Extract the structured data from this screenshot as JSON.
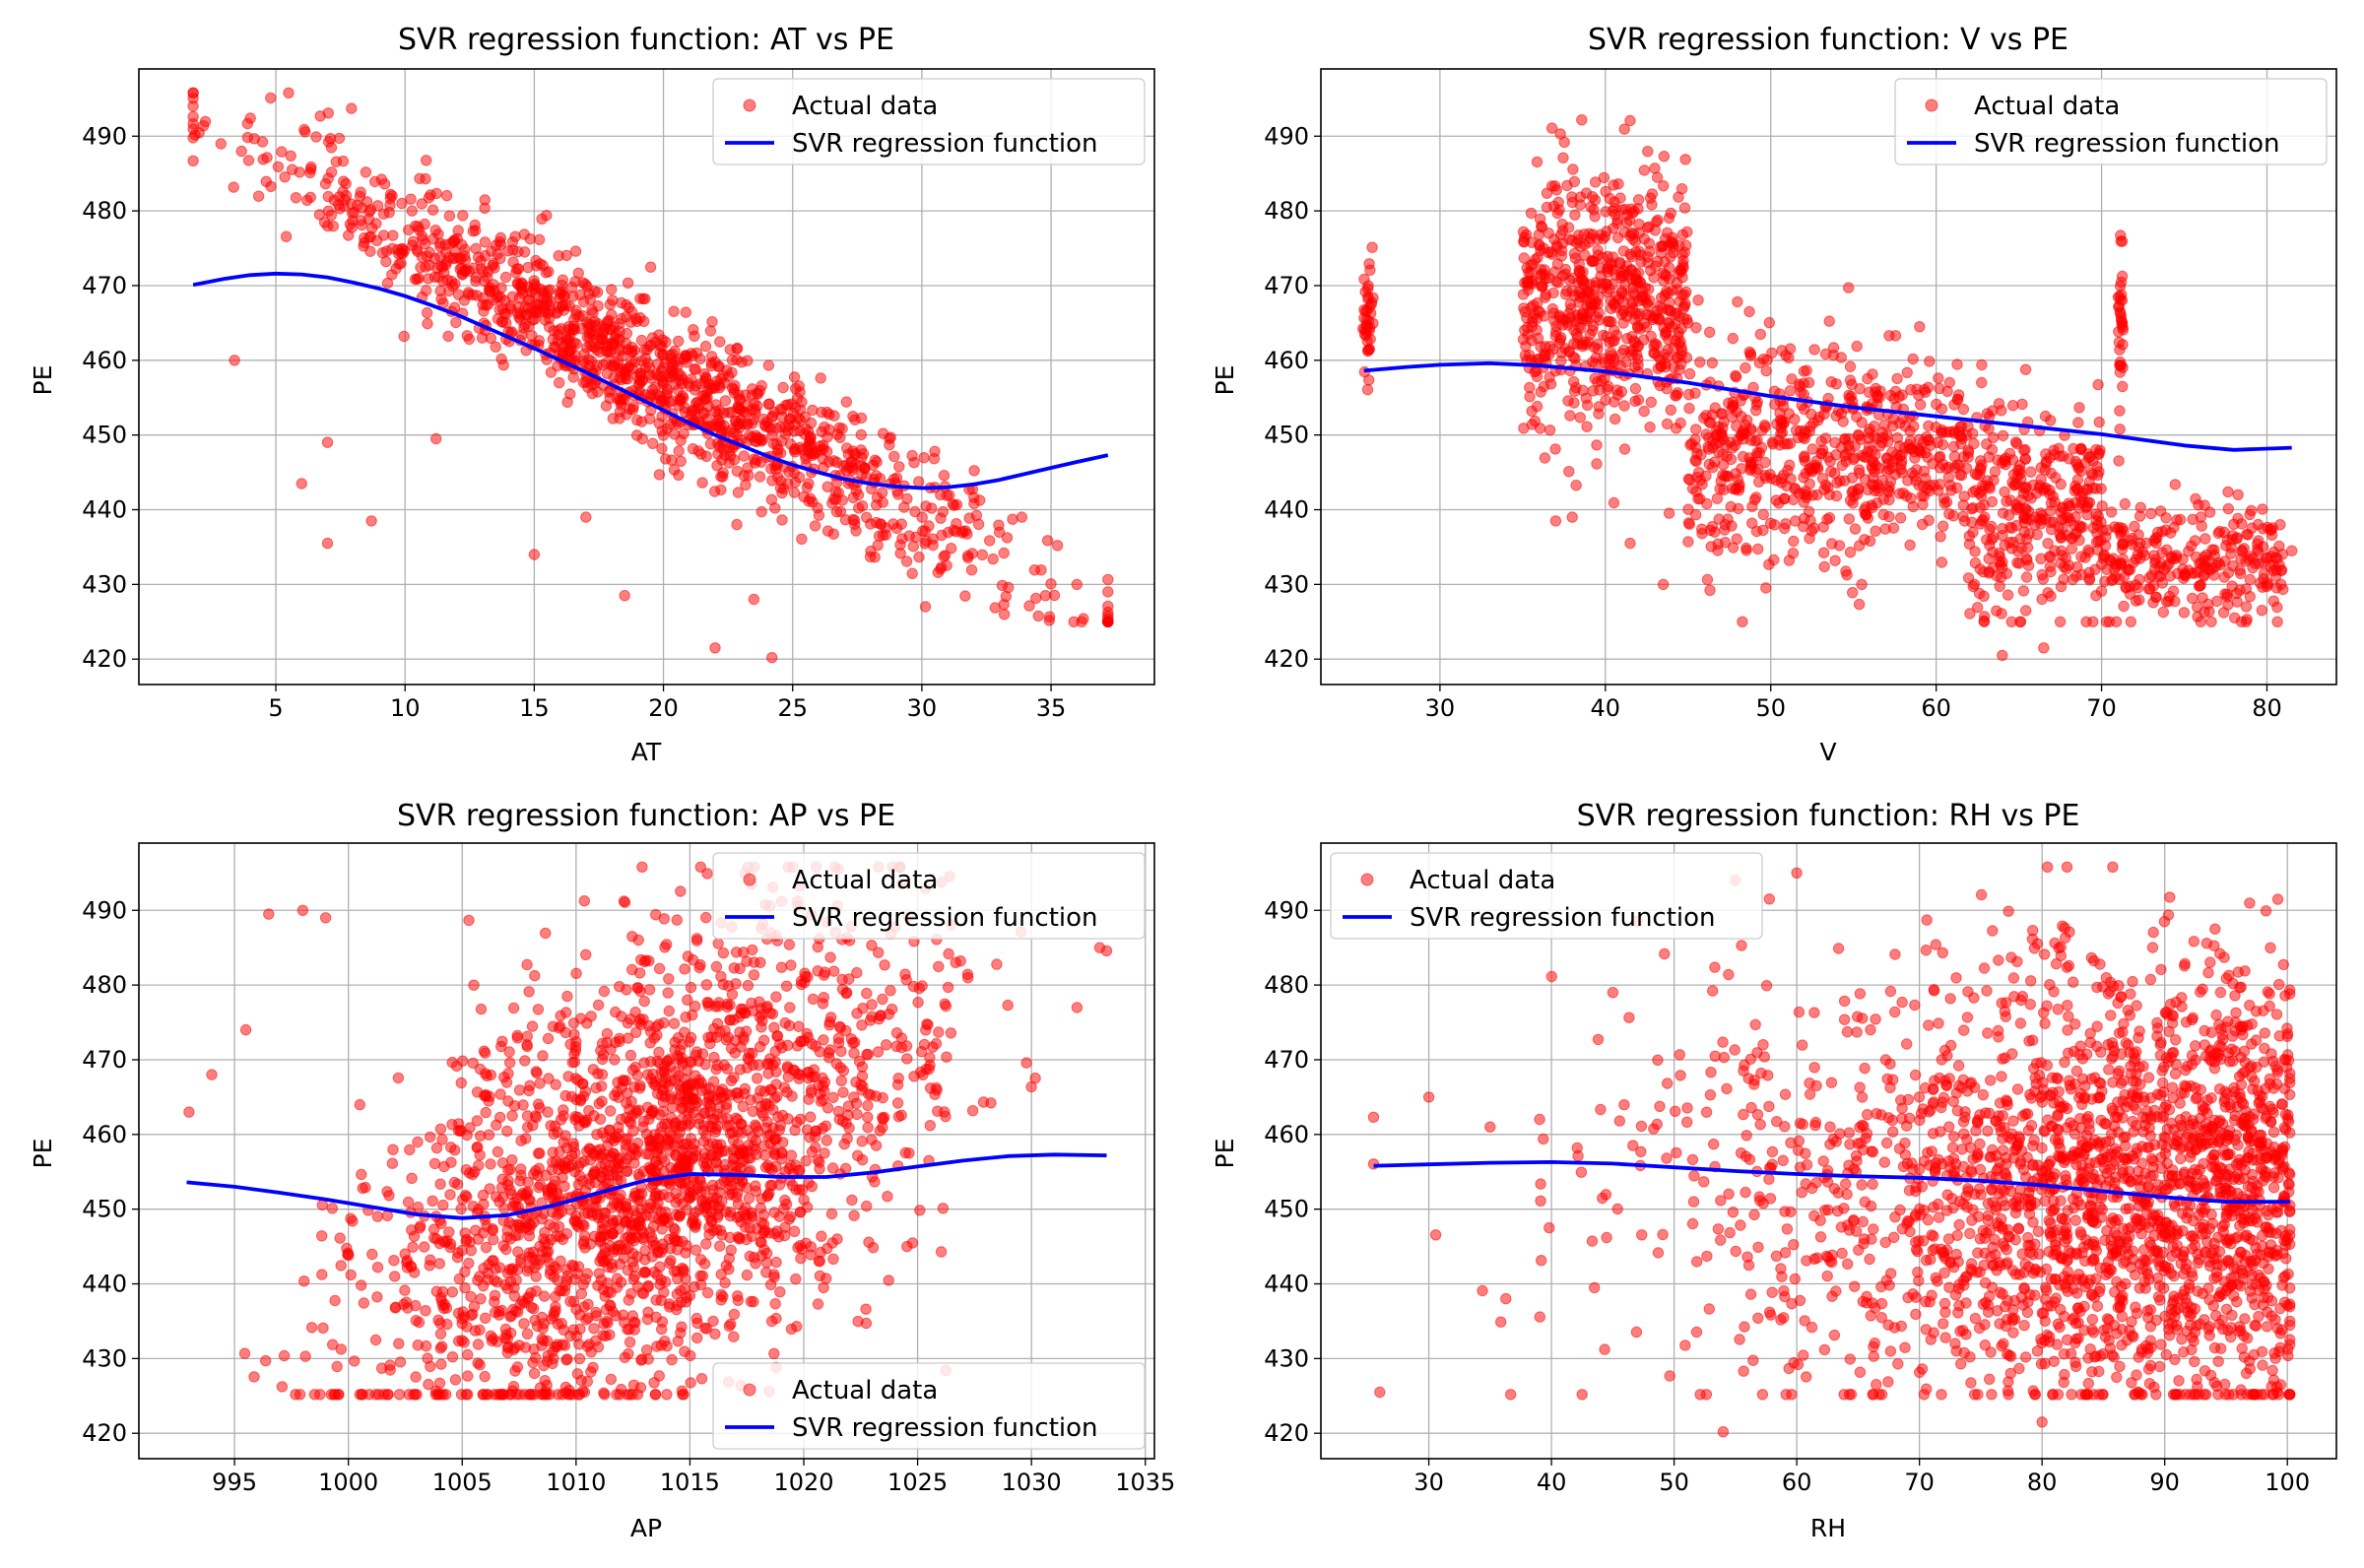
{
  "figure": {
    "background": "#ffffff"
  },
  "colors": {
    "scatter": "#ff0000",
    "line": "#0000ff",
    "grid": "#b0b0b0"
  },
  "chart_data": [
    {
      "type": "scatter",
      "title": "SVR regression function: AT vs PE",
      "xlabel": "AT",
      "ylabel": "PE",
      "xlim": [
        -0.3,
        39.0
      ],
      "ylim": [
        416.6,
        499.0
      ],
      "xticks": [
        5,
        10,
        15,
        20,
        25,
        30,
        35
      ],
      "yticks": [
        420,
        430,
        440,
        450,
        460,
        470,
        480,
        490
      ],
      "grid": true,
      "legend_loc": "upper-right",
      "gen": {
        "kind": "linear",
        "x0": 1.8,
        "x1": 37.2,
        "xmu": 19.5,
        "xsd": 7.3,
        "y0": 492,
        "slope": -1.93,
        "ysd": 4.5,
        "ymin": 425,
        "ymax": 495.8,
        "n": 1300,
        "outliers": [
          [
            3.4,
            460
          ],
          [
            6,
            443.5
          ],
          [
            7,
            449
          ],
          [
            7,
            435.5
          ],
          [
            8.7,
            438.5
          ],
          [
            11.2,
            449.5
          ],
          [
            15,
            434
          ],
          [
            17,
            439
          ],
          [
            18.5,
            428.5
          ],
          [
            22,
            421.5
          ],
          [
            24.2,
            420.2
          ],
          [
            23.5,
            428
          ],
          [
            30.5,
            447.8
          ],
          [
            30.5,
            443
          ],
          [
            33,
            437
          ],
          [
            36,
            430
          ],
          [
            37.2,
            429
          ]
        ]
      },
      "series": [
        {
          "name": "Actual data",
          "kind": "scatter"
        },
        {
          "name": "SVR regression function",
          "kind": "line",
          "x": [
            1.8,
            3,
            4,
            5,
            6,
            7,
            8,
            9,
            10,
            11,
            12,
            13,
            14,
            15,
            16,
            17,
            18,
            19,
            20,
            21,
            22,
            23,
            24,
            25,
            26,
            27,
            28,
            29,
            30,
            31,
            32,
            33,
            34,
            35,
            36,
            37.2
          ],
          "y": [
            470.1,
            470.9,
            471.4,
            471.6,
            471.5,
            471.1,
            470.4,
            469.6,
            468.6,
            467.4,
            466.1,
            464.6,
            463.1,
            461.6,
            460.0,
            458.4,
            456.7,
            455.0,
            453.3,
            451.6,
            450.0,
            448.6,
            447.2,
            446.0,
            445.0,
            444.1,
            443.5,
            443.1,
            442.9,
            443.0,
            443.4,
            444.0,
            444.8,
            445.6,
            446.4,
            447.3
          ]
        }
      ]
    },
    {
      "type": "scatter",
      "title": "SVR regression function: V vs PE",
      "xlabel": "V",
      "ylabel": "PE",
      "xlim": [
        22.8,
        84.2
      ],
      "ylim": [
        416.6,
        499.0
      ],
      "xticks": [
        30,
        40,
        50,
        60,
        70,
        80
      ],
      "yticks": [
        420,
        430,
        440,
        450,
        460,
        470,
        480,
        490
      ],
      "grid": true,
      "legend_loc": "upper-right",
      "gen": {
        "kind": "clusters",
        "ymin": 425,
        "ymax": 495.8,
        "clusters": [
          [
            35,
            45,
            468,
            9,
            650
          ],
          [
            45,
            55,
            448,
            8,
            380
          ],
          [
            55,
            62,
            447,
            6,
            260
          ],
          [
            62,
            70,
            440,
            7,
            340
          ],
          [
            70,
            81,
            433,
            4,
            280
          ],
          [
            25.3,
            26,
            465,
            4,
            40
          ],
          [
            71,
            71.3,
            465,
            7,
            35
          ]
        ],
        "outliers": [
          [
            37,
            438.5
          ],
          [
            38,
            439
          ],
          [
            41.5,
            435.5
          ],
          [
            43.5,
            430
          ],
          [
            55.5,
            430
          ],
          [
            64,
            420.5
          ],
          [
            66.5,
            421.5
          ],
          [
            81.5,
            434.5
          ],
          [
            48,
            449.3
          ],
          [
            52,
            441
          ]
        ]
      },
      "series": [
        {
          "name": "Actual data",
          "kind": "scatter"
        },
        {
          "name": "SVR regression function",
          "kind": "line",
          "x": [
            25.4,
            28,
            30,
            33,
            36,
            40,
            45,
            50,
            55,
            60,
            65,
            70,
            75,
            78,
            81.5
          ],
          "y": [
            458.6,
            459.1,
            459.4,
            459.6,
            459.3,
            458.5,
            457.0,
            455.2,
            453.7,
            452.5,
            451.3,
            450.1,
            448.6,
            448.0,
            448.3
          ]
        }
      ]
    },
    {
      "type": "scatter",
      "title": "SVR regression function: AP vs PE",
      "xlabel": "AP",
      "ylabel": "PE",
      "xlim": [
        990.8,
        1035.4
      ],
      "ylim": [
        416.6,
        499.0
      ],
      "xticks": [
        995,
        1000,
        1005,
        1010,
        1015,
        1020,
        1025,
        1030,
        1035
      ],
      "xticklabels": [
        "995",
        "1000",
        "1005",
        "1010",
        "1015",
        "1020",
        "1025",
        "1030",
        "1035"
      ],
      "yticks": [
        420,
        430,
        440,
        450,
        460,
        470,
        480,
        490
      ],
      "grid": true,
      "legend_loc": "upper-right and lower-right",
      "gen": {
        "kind": "corr",
        "xmu": 1013.2,
        "xsd": 5.9,
        "ymu": 454.4,
        "ysd": 17,
        "rho": 0.52,
        "xmin": 992.9,
        "xmax": 1033.3,
        "ymin": 425.2,
        "ymax": 495.8,
        "n": 2200,
        "outliers": [
          [
            993,
            463
          ],
          [
            994,
            468
          ],
          [
            995.5,
            474
          ],
          [
            996.5,
            489.5
          ],
          [
            998,
            490
          ],
          [
            999,
            489
          ],
          [
            1033,
            485
          ],
          [
            1032,
            477
          ]
        ]
      },
      "series": [
        {
          "name": "Actual data",
          "kind": "scatter"
        },
        {
          "name": "SVR regression function",
          "kind": "line",
          "x": [
            992.9,
            995,
            997,
            999,
            1001,
            1003,
            1005,
            1007,
            1009,
            1011,
            1013,
            1015,
            1017,
            1019,
            1021,
            1023,
            1025,
            1027,
            1029,
            1031,
            1033.3
          ],
          "y": [
            453.6,
            453.0,
            452.2,
            451.3,
            450.3,
            449.3,
            448.8,
            449.2,
            450.5,
            452.2,
            453.8,
            454.7,
            454.6,
            454.3,
            454.3,
            454.9,
            455.7,
            456.5,
            457.1,
            457.3,
            457.2
          ]
        }
      ]
    },
    {
      "type": "scatter",
      "title": "SVR regression function: RH vs PE",
      "xlabel": "RH",
      "ylabel": "PE",
      "xlim": [
        21.2,
        104.0
      ],
      "ylim": [
        416.6,
        499.0
      ],
      "xticks": [
        30,
        40,
        50,
        60,
        70,
        80,
        90,
        100
      ],
      "yticks": [
        420,
        430,
        440,
        450,
        460,
        470,
        480,
        490
      ],
      "grid": true,
      "legend_loc": "upper-left",
      "gen": {
        "kind": "skew",
        "xmin": 25.5,
        "xmax": 100.2,
        "ymin": 425.2,
        "ymax": 495.8,
        "n": 2300,
        "outliers": [
          [
            54,
            420.2
          ],
          [
            80,
            421.5
          ],
          [
            26,
            425.5
          ],
          [
            30,
            465
          ],
          [
            35,
            461
          ],
          [
            45,
            479
          ],
          [
            47,
            488.5
          ],
          [
            55,
            494
          ],
          [
            60,
            495
          ]
        ]
      },
      "series": [
        {
          "name": "Actual data",
          "kind": "scatter"
        },
        {
          "name": "SVR regression function",
          "kind": "line",
          "x": [
            25.5,
            30,
            35,
            40,
            45,
            50,
            55,
            60,
            65,
            70,
            75,
            80,
            85,
            90,
            95,
            100.2
          ],
          "y": [
            455.8,
            456.0,
            456.2,
            456.3,
            456.1,
            455.6,
            455.1,
            454.7,
            454.4,
            454.2,
            453.8,
            453.2,
            452.4,
            451.6,
            451.0,
            451.0
          ]
        }
      ]
    }
  ]
}
